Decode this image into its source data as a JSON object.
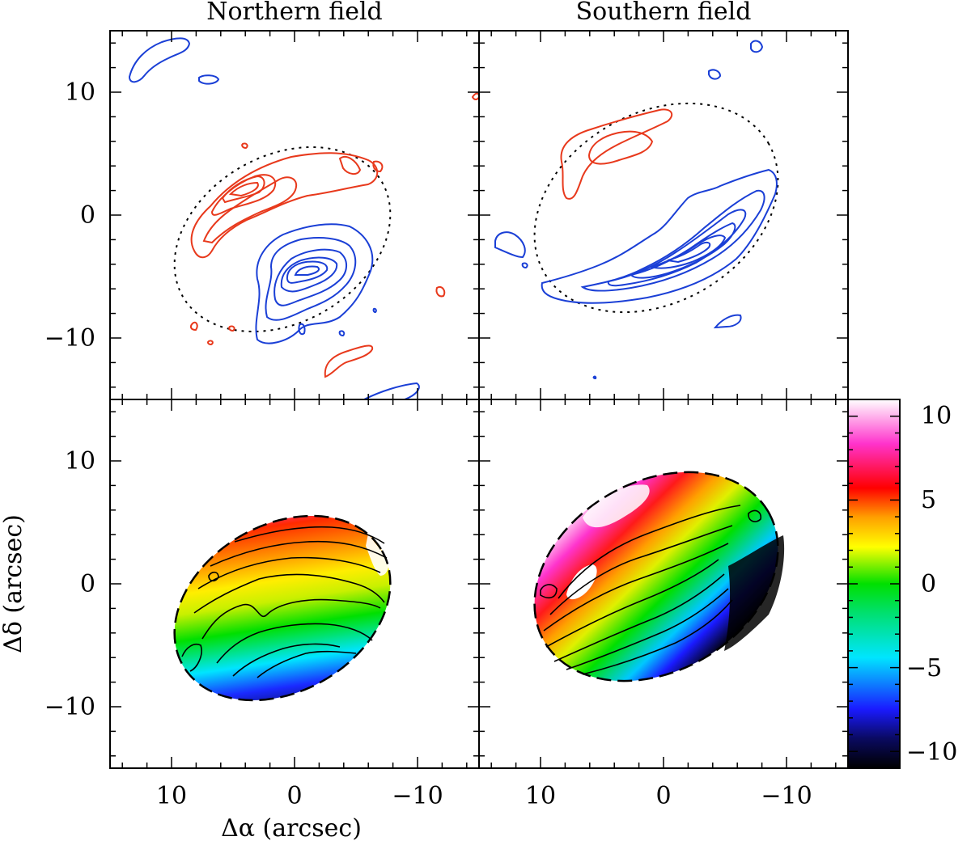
{
  "chart_data": {
    "type": "contour",
    "panels": [
      {
        "id": "north-top",
        "title": "Northern field",
        "content": "redshifted (red) and blueshifted (blue) intensity contours with dotted elliptical field boundary"
      },
      {
        "id": "south-top",
        "title": "Southern field",
        "content": "redshifted (red) and blueshifted (blue) intensity contours with dotted elliptical field boundary"
      },
      {
        "id": "north-bottom",
        "title": "",
        "content": "velocity map with iso-velocity contours"
      },
      {
        "id": "south-bottom",
        "title": "",
        "content": "velocity map with iso-velocity contours"
      }
    ],
    "titles": {
      "left": "Northern field",
      "right": "Southern field"
    },
    "xlabel": "Δα (arcsec)",
    "ylabel": "Δδ (arcsec)",
    "xlim": [
      15,
      -15
    ],
    "ylim": [
      -15,
      15
    ],
    "xticks": [
      10,
      0,
      -10
    ],
    "yticks": [
      10,
      0,
      -10
    ],
    "xtick_labels": [
      "10",
      "0",
      "−10"
    ],
    "ytick_labels": [
      "10",
      "0",
      "−10"
    ],
    "colorbar": {
      "range": [
        -11,
        11
      ],
      "ticks": [
        10,
        5,
        0,
        -5,
        -10
      ],
      "tick_labels": [
        "10",
        "5",
        "0",
        "−5",
        "−10"
      ],
      "colormap": [
        "#000000",
        "#1a1aff",
        "#00e5ff",
        "#00e000",
        "#ffff00",
        "#ffa000",
        "#ff0000",
        "#ff33cc",
        "#ffffff"
      ]
    },
    "colors": {
      "redshifted": "#e8391c",
      "blueshifted": "#1a3fd6",
      "contour": "#000000"
    }
  }
}
